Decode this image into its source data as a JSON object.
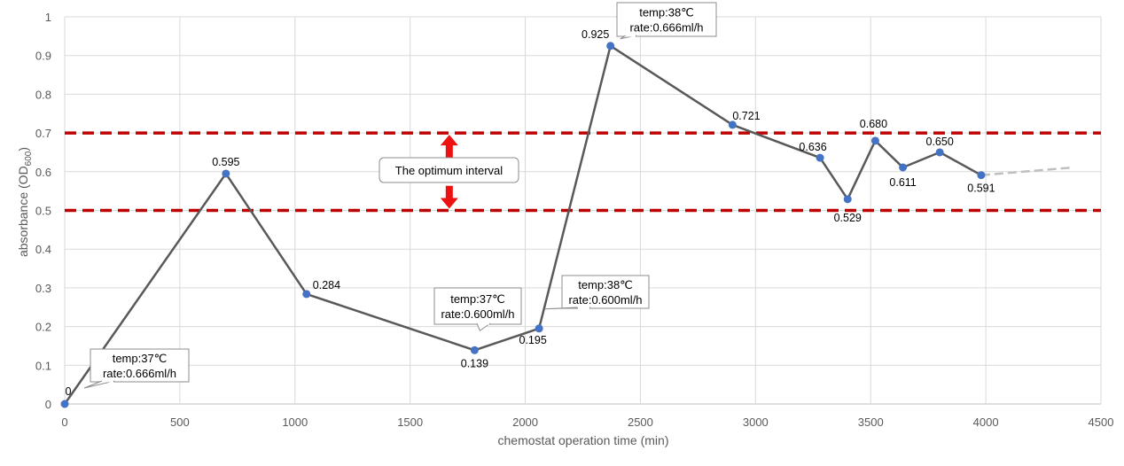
{
  "chart_data": {
    "type": "line",
    "xlabel": "chemostat operation time (min)",
    "ylabel_main": "absorbance (OD",
    "ylabel_sub": "600",
    "ylabel_close": ")",
    "xlim": [
      0,
      4500
    ],
    "ylim": [
      0,
      1
    ],
    "xticks": [
      0,
      500,
      1000,
      1500,
      2000,
      2500,
      3000,
      3500,
      4000,
      4500
    ],
    "yticks": [
      0,
      0.1,
      0.2,
      0.3,
      0.4,
      0.5,
      0.6,
      0.7,
      0.8,
      0.9,
      1
    ],
    "ytick_labels": [
      "0",
      "0.1",
      "0.2",
      "0.3",
      "0.4",
      "0.5",
      "0.6",
      "0.7",
      "0.8",
      "0.9",
      "1"
    ],
    "grid": true,
    "series": [
      {
        "x": [
          0,
          700,
          1050,
          1780,
          2060,
          2370,
          2900,
          3280,
          3400,
          3520,
          3640,
          3800,
          3980
        ],
        "y": [
          0,
          0.595,
          0.284,
          0.139,
          0.195,
          0.925,
          0.721,
          0.636,
          0.529,
          0.68,
          0.611,
          0.65,
          0.591
        ],
        "labels": [
          "0",
          "0.595",
          "0.284",
          "0.139",
          "0.195",
          "0.925",
          "0.721",
          "0.636",
          "0.529",
          "0.680",
          "0.611",
          "0.650",
          "0.591"
        ],
        "color": "#595959",
        "marker_color": "#4472c4"
      }
    ],
    "trend_extension": {
      "x": [
        3980,
        4380
      ],
      "y": [
        0.591,
        0.611
      ],
      "color": "#bfbfbf"
    },
    "reference_lines": [
      {
        "y": 0.7,
        "color": "#c00000"
      },
      {
        "y": 0.5,
        "color": "#c00000"
      }
    ],
    "interval_arrow": {
      "x": 1670,
      "y_from": 0.5,
      "y_to": 0.7,
      "color": "#ee1111"
    },
    "annotations": [
      {
        "lines": [
          "The optimum interval"
        ],
        "x": 1670,
        "y": 0.6
      },
      {
        "lines": [
          "temp:37℃",
          "rate:0.666ml/h"
        ],
        "x": 0,
        "y": 0
      },
      {
        "lines": [
          "temp:37℃",
          "rate:0.600ml/h"
        ],
        "x": 1780,
        "y": 0.139
      },
      {
        "lines": [
          "temp:38℃",
          "rate:0.600ml/h"
        ],
        "x": 2060,
        "y": 0.195
      },
      {
        "lines": [
          "temp:38℃",
          "rate:0.666ml/h"
        ],
        "x": 2370,
        "y": 0.925
      }
    ]
  }
}
